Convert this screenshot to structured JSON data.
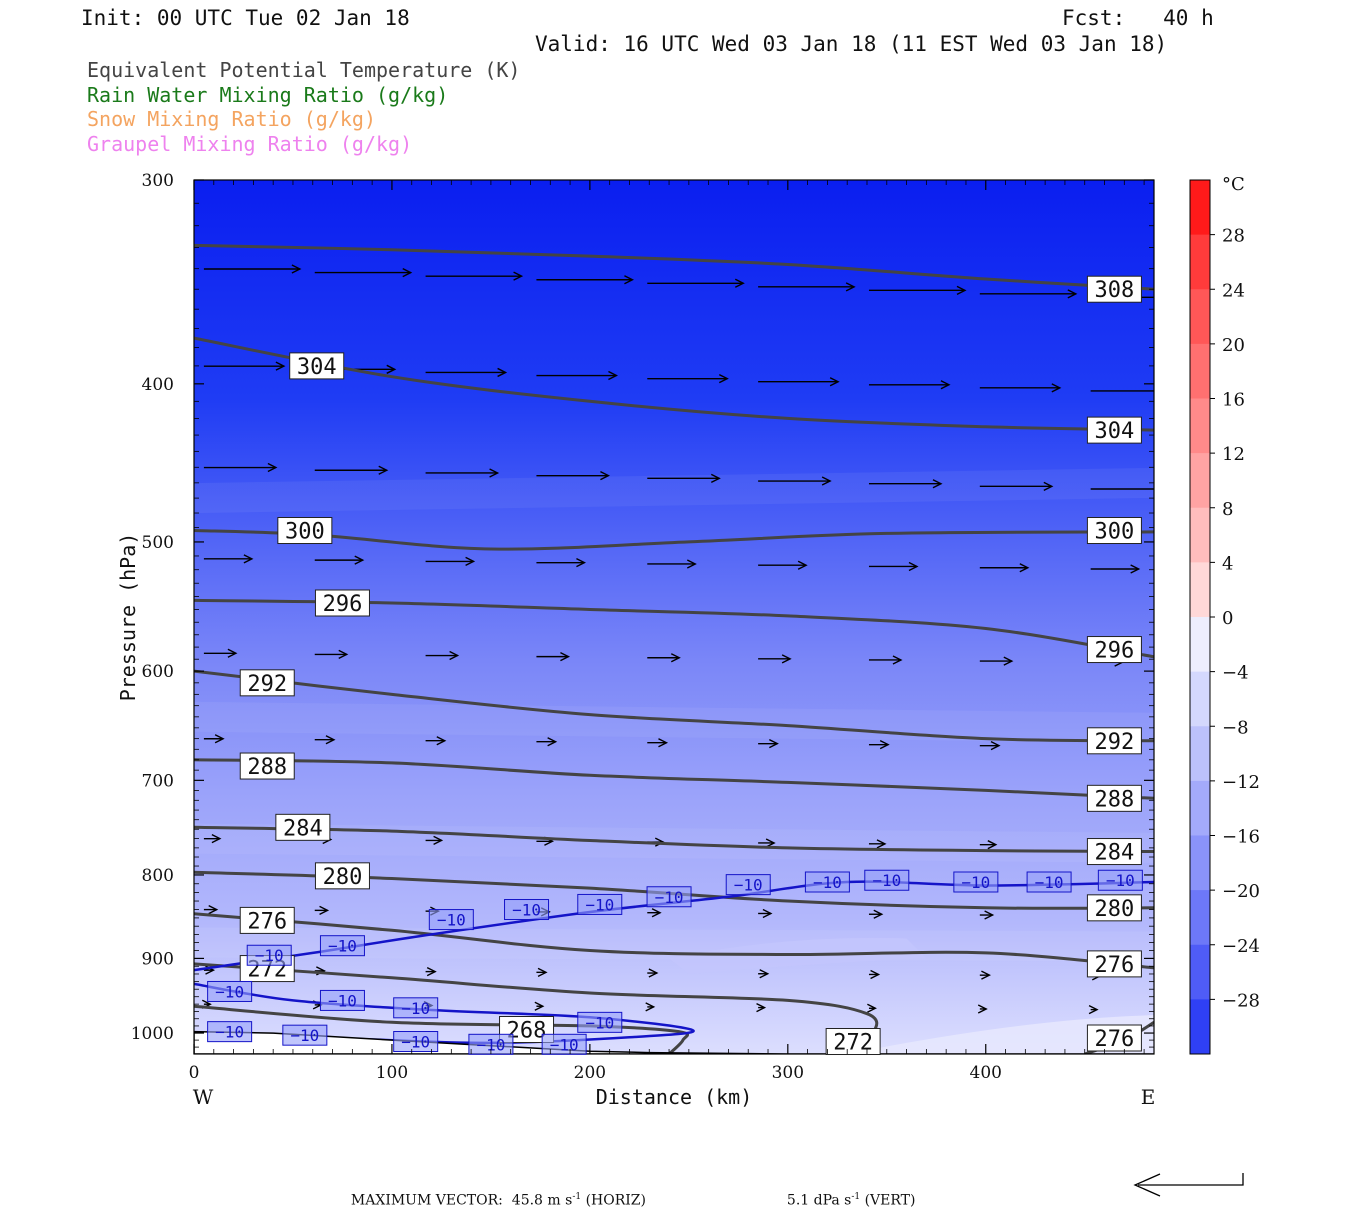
{
  "header": {
    "init": "Init: 00 UTC Tue 02 Jan 18",
    "fcst": "Fcst:   40 h",
    "valid": "Valid: 16 UTC Wed 03 Jan 18 (11 EST Wed 03 Jan 18)"
  },
  "legend": [
    {
      "label": "Equivalent Potential Temperature (K)",
      "color": "#444444"
    },
    {
      "label": "Rain Water Mixing Ratio (g/kg)",
      "color": "#1a7a1a"
    },
    {
      "label": "Snow Mixing Ratio (g/kg)",
      "color": "#f4a460"
    },
    {
      "label": "Graupel Mixing Ratio (g/kg)",
      "color": "#ee82ee"
    }
  ],
  "chart_data": {
    "type": "cross-section",
    "xlabel": "Distance (km)",
    "ylabel": "Pressure (hPa)",
    "xlim": [
      0,
      485
    ],
    "ylim": [
      1030,
      300
    ],
    "y_scale": "log",
    "x_ticks": [
      0,
      100,
      200,
      300,
      400
    ],
    "y_ticks": [
      300,
      400,
      500,
      600,
      700,
      800,
      900,
      1000
    ],
    "x_end_labels": {
      "left": "W",
      "right": "E"
    },
    "colorbar": {
      "unit": "°C",
      "tick_labels": [
        "28",
        "24",
        "20",
        "16",
        "12",
        "8",
        "4",
        "0",
        "−4",
        "−8",
        "−12",
        "−16",
        "−20",
        "−24",
        "−28"
      ],
      "tick_values": [
        28,
        24,
        20,
        16,
        12,
        8,
        4,
        0,
        -4,
        -8,
        -12,
        -16,
        -20,
        -24,
        -28
      ],
      "range": [
        -32,
        32
      ],
      "bins": 16
    },
    "theta_e_contours": [
      {
        "value": 308,
        "label": "308",
        "points": [
          [
            0,
            329
          ],
          [
            100,
            331
          ],
          [
            200,
            334
          ],
          [
            300,
            338
          ],
          [
            400,
            345
          ],
          [
            485,
            350
          ]
        ],
        "labels_at": [
          [
            465,
            350
          ]
        ]
      },
      {
        "value": 304,
        "label": "304",
        "points": [
          [
            0,
            375
          ],
          [
            100,
            396
          ],
          [
            200,
            410
          ],
          [
            300,
            420
          ],
          [
            400,
            425
          ],
          [
            485,
            427
          ]
        ],
        "labels_at": [
          [
            62,
            390
          ],
          [
            465,
            427
          ]
        ]
      },
      {
        "value": 300,
        "label": "300",
        "points": [
          [
            0,
            492
          ],
          [
            60,
            495
          ],
          [
            150,
            505
          ],
          [
            250,
            500
          ],
          [
            350,
            494
          ],
          [
            485,
            493
          ]
        ],
        "labels_at": [
          [
            56,
            492
          ],
          [
            465,
            492
          ]
        ]
      },
      {
        "value": 296,
        "label": "296",
        "points": [
          [
            0,
            543
          ],
          [
            100,
            545
          ],
          [
            200,
            550
          ],
          [
            300,
            555
          ],
          [
            400,
            565
          ],
          [
            485,
            588
          ]
        ],
        "labels_at": [
          [
            75,
            545
          ],
          [
            465,
            582
          ]
        ]
      },
      {
        "value": 292,
        "label": "292",
        "points": [
          [
            0,
            600
          ],
          [
            100,
            620
          ],
          [
            200,
            638
          ],
          [
            300,
            648
          ],
          [
            400,
            660
          ],
          [
            485,
            662
          ]
        ],
        "labels_at": [
          [
            37,
            610
          ],
          [
            465,
            662
          ]
        ]
      },
      {
        "value": 288,
        "label": "288",
        "points": [
          [
            0,
            680
          ],
          [
            100,
            683
          ],
          [
            200,
            695
          ],
          [
            300,
            702
          ],
          [
            400,
            710
          ],
          [
            485,
            718
          ]
        ],
        "labels_at": [
          [
            37,
            686
          ],
          [
            465,
            718
          ]
        ]
      },
      {
        "value": 284,
        "label": "284",
        "points": [
          [
            0,
            748
          ],
          [
            100,
            752
          ],
          [
            200,
            762
          ],
          [
            300,
            770
          ],
          [
            400,
            773
          ],
          [
            485,
            774
          ]
        ],
        "labels_at": [
          [
            55,
            748
          ],
          [
            465,
            774
          ]
        ]
      },
      {
        "value": 280,
        "label": "280",
        "points": [
          [
            0,
            797
          ],
          [
            100,
            804
          ],
          [
            200,
            815
          ],
          [
            300,
            830
          ],
          [
            400,
            838
          ],
          [
            485,
            838
          ]
        ],
        "labels_at": [
          [
            75,
            801
          ],
          [
            465,
            838
          ]
        ]
      },
      {
        "value": 276,
        "label": "276",
        "points": [
          [
            0,
            845
          ],
          [
            100,
            865
          ],
          [
            200,
            890
          ],
          [
            300,
            895
          ],
          [
            400,
            893
          ],
          [
            485,
            912
          ]
        ],
        "labels_at": [
          [
            37,
            853
          ],
          [
            465,
            907
          ]
        ]
      },
      {
        "value": 272,
        "label": "272",
        "points": [
          [
            0,
            907
          ],
          [
            100,
            925
          ],
          [
            200,
            945
          ],
          [
            300,
            955
          ],
          [
            340,
            973
          ],
          [
            343,
            1000
          ],
          [
            328,
            1030
          ]
        ],
        "labels_at": [
          [
            37,
            913
          ],
          [
            333,
            1012
          ]
        ]
      },
      {
        "value": 268,
        "label": "268",
        "points": [
          [
            0,
            963
          ],
          [
            100,
            985
          ],
          [
            200,
            990
          ],
          [
            245,
            998
          ],
          [
            247,
            1010
          ],
          [
            240,
            1030
          ]
        ],
        "labels_at": [
          [
            168,
            995
          ]
        ]
      },
      {
        "value": 276,
        "label": "276",
        "points": [
          [
            485,
            985
          ],
          [
            470,
            1010
          ],
          [
            450,
            1030
          ]
        ],
        "labels_at": [
          [
            465,
            1007
          ]
        ]
      }
    ],
    "isotherm_minus10": [
      {
        "label": "−10",
        "points": [
          [
            0,
            915
          ],
          [
            60,
            893
          ],
          [
            120,
            870
          ],
          [
            200,
            843
          ],
          [
            270,
            825
          ],
          [
            330,
            808
          ],
          [
            400,
            812
          ],
          [
            485,
            808
          ]
        ],
        "labels_at": [
          [
            38,
            896
          ],
          [
            75,
            884
          ],
          [
            130,
            852
          ],
          [
            168,
            840
          ],
          [
            205,
            834
          ],
          [
            240,
            825
          ],
          [
            280,
            811
          ],
          [
            320,
            808
          ],
          [
            350,
            806
          ],
          [
            395,
            808
          ],
          [
            432,
            808
          ],
          [
            468,
            806
          ]
        ]
      },
      {
        "label": "−10",
        "points": [
          [
            0,
            933
          ],
          [
            50,
            955
          ],
          [
            120,
            968
          ],
          [
            200,
            978
          ],
          [
            252,
            996
          ],
          [
            220,
            1006
          ],
          [
            150,
            1014
          ],
          [
            80,
            1008
          ],
          [
            0,
            1000
          ]
        ],
        "labels_at": [
          [
            18,
            943
          ],
          [
            75,
            955
          ],
          [
            112,
            965
          ],
          [
            205,
            985
          ],
          [
            18,
            998
          ],
          [
            56,
            1003
          ],
          [
            112,
            1012
          ],
          [
            150,
            1016
          ],
          [
            187,
            1016
          ]
        ]
      }
    ],
    "vector_scale": {
      "label": "MAXIMUM VECTOR:",
      "horiz": "45.8",
      "horiz_unit": "m s",
      "vert": "5.1",
      "vert_unit": "dPa s",
      "horiz_word": "(HORIZ)",
      "vert_word": "(VERT)"
    }
  }
}
